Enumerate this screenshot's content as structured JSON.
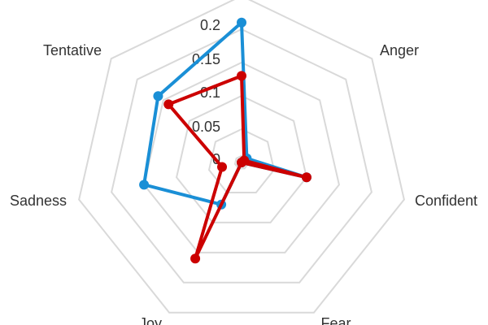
{
  "chart_data": {
    "type": "radar",
    "axes": [
      "Anger",
      "Confident",
      "Fear",
      "Joy",
      "Sadness",
      "Tentative"
    ],
    "tick_labels": [
      "0",
      "0.05",
      "0.1",
      "0.15",
      "0.2"
    ],
    "range": [
      0,
      0.25
    ],
    "grid": true,
    "series": [
      {
        "color": "#1a8fd6",
        "values": [
          0.01,
          0.1,
          0.0,
          0.07,
          0.15,
          0.16
        ],
        "top": 0.21
      },
      {
        "color": "#cc0000",
        "values": [
          0.005,
          0.1,
          0.0,
          0.16,
          0.03,
          0.14
        ],
        "top": 0.13
      }
    ]
  }
}
